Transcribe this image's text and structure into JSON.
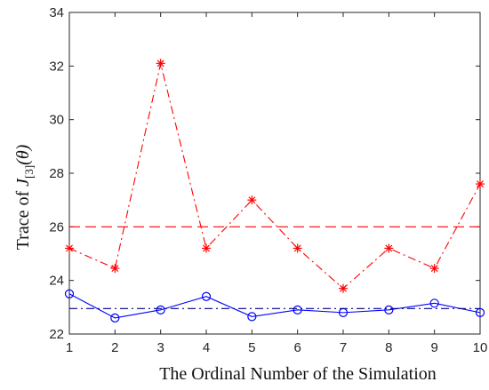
{
  "chart_data": {
    "type": "line",
    "xlabel": "The Ordinal Number of the Simulation",
    "ylabel": {
      "prefix": "Trace of ",
      "symbol": "J",
      "subscript": "[3]",
      "argument": "(θ)"
    },
    "xlim": [
      1,
      10
    ],
    "ylim": [
      22,
      34
    ],
    "x_ticks": [
      1,
      2,
      3,
      4,
      5,
      6,
      7,
      8,
      9,
      10
    ],
    "y_ticks": [
      22,
      24,
      26,
      28,
      30,
      32,
      34
    ],
    "grid": false,
    "x": [
      1,
      2,
      3,
      4,
      5,
      6,
      7,
      8,
      9,
      10
    ],
    "series": [
      {
        "color": "#ff0000",
        "line_style": "dashdot",
        "marker": "asterisk",
        "values": [
          25.2,
          24.45,
          32.1,
          25.2,
          27.0,
          25.2,
          23.7,
          25.2,
          24.45,
          27.6
        ]
      },
      {
        "color": "#ff0000",
        "line_style": "dashed",
        "marker": "none",
        "values": [
          26.0,
          26.0,
          26.0,
          26.0,
          26.0,
          26.0,
          26.0,
          26.0,
          26.0,
          26.0
        ]
      },
      {
        "color": "#0000ff",
        "line_style": "solid",
        "marker": "circle",
        "values": [
          23.5,
          22.6,
          22.9,
          23.4,
          22.65,
          22.9,
          22.8,
          22.9,
          23.15,
          22.8
        ]
      },
      {
        "color": "#00008b",
        "line_style": "dashdot",
        "marker": "none",
        "values": [
          22.95,
          22.95,
          22.95,
          22.95,
          22.95,
          22.95,
          22.95,
          22.95,
          22.95,
          22.95
        ]
      }
    ]
  }
}
